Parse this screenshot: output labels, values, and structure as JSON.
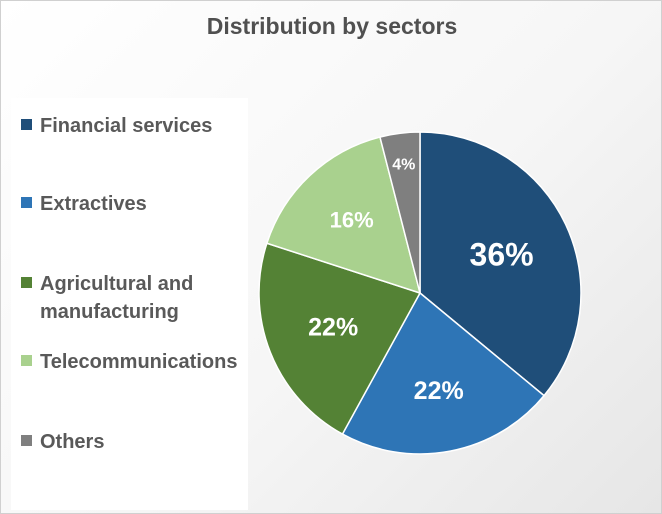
{
  "chart_data": {
    "type": "pie",
    "title": "Distribution by sectors",
    "categories": [
      "Financial services",
      "Extractives",
      "Agricultural and\nmanufacturing",
      "Telecommunications",
      "Others"
    ],
    "values": [
      36,
      22,
      22,
      16,
      4
    ],
    "data_labels": [
      "36%",
      "22%",
      "22%",
      "16%",
      "4%"
    ],
    "colors": [
      "#1F4E79",
      "#2E75B6",
      "#548235",
      "#A9D18E",
      "#7F7F7F"
    ],
    "legend_position": "left"
  }
}
